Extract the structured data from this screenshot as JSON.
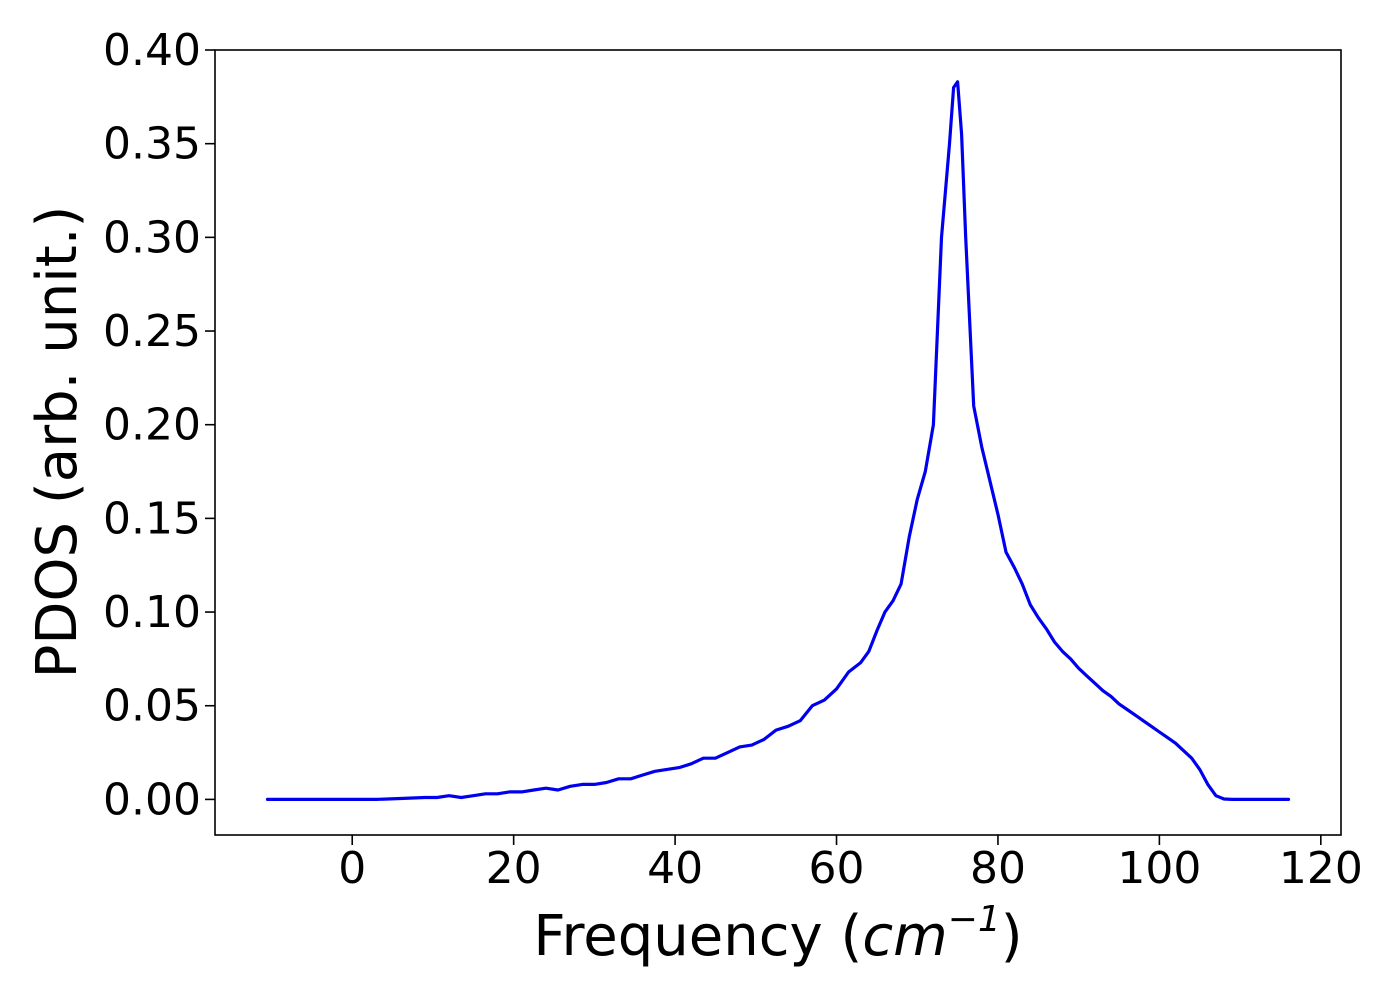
{
  "chart_data": {
    "type": "line",
    "title": "",
    "xlabel_prefix": "Frequency (",
    "xlabel_math": "cm",
    "xlabel_superscript": "−1",
    "xlabel_suffix": ")",
    "ylabel": "PDOS (arb. unit.)",
    "xlim": [
      -17,
      122.5
    ],
    "ylim": [
      -0.019,
      0.4
    ],
    "xticks": [
      0,
      20,
      40,
      60,
      80,
      100,
      120
    ],
    "yticks": [
      0.0,
      0.05,
      0.1,
      0.15,
      0.2,
      0.25,
      0.3,
      0.35,
      0.4
    ],
    "xtick_labels": [
      "0",
      "20",
      "40",
      "60",
      "80",
      "100",
      "120"
    ],
    "ytick_labels": [
      "0.00",
      "0.05",
      "0.10",
      "0.15",
      "0.20",
      "0.25",
      "0.30",
      "0.35",
      "0.40"
    ],
    "grid": false,
    "legend": "none",
    "series": [
      {
        "color": "#0000ee",
        "x": [
          -10.5,
          0,
          3,
          6,
          9,
          10.5,
          12,
          13.5,
          15,
          16.5,
          18,
          19.5,
          21,
          22.5,
          24,
          25.5,
          27,
          28.5,
          30,
          31.5,
          33,
          34.5,
          36,
          37.5,
          39,
          40.5,
          42,
          43.5,
          45,
          46.5,
          48,
          49.5,
          51,
          52.5,
          54,
          55.5,
          57,
          58.5,
          60,
          61.5,
          63,
          64,
          65,
          66,
          67,
          68,
          69,
          70,
          71,
          72,
          73,
          74,
          74.5,
          75,
          75.5,
          76,
          77,
          78,
          79,
          80,
          81,
          82,
          83,
          84,
          85,
          86,
          87,
          88,
          89,
          90,
          91,
          92,
          93,
          94,
          95,
          96,
          97,
          98,
          99,
          100,
          101,
          102,
          103,
          104,
          105,
          106,
          107,
          108,
          109,
          110,
          112,
          114,
          116
        ],
        "y": [
          0.0,
          0.0,
          0.0,
          0.0005,
          0.001,
          0.001,
          0.002,
          0.001,
          0.002,
          0.003,
          0.003,
          0.004,
          0.004,
          0.005,
          0.006,
          0.005,
          0.007,
          0.008,
          0.008,
          0.009,
          0.011,
          0.011,
          0.013,
          0.015,
          0.016,
          0.017,
          0.019,
          0.022,
          0.022,
          0.025,
          0.028,
          0.029,
          0.032,
          0.037,
          0.039,
          0.042,
          0.05,
          0.053,
          0.059,
          0.068,
          0.073,
          0.079,
          0.09,
          0.1,
          0.106,
          0.115,
          0.14,
          0.16,
          0.175,
          0.2,
          0.3,
          0.35,
          0.38,
          0.383,
          0.355,
          0.3,
          0.21,
          0.188,
          0.17,
          0.152,
          0.132,
          0.124,
          0.115,
          0.104,
          0.097,
          0.091,
          0.084,
          0.079,
          0.075,
          0.07,
          0.066,
          0.062,
          0.058,
          0.055,
          0.051,
          0.048,
          0.045,
          0.042,
          0.039,
          0.036,
          0.033,
          0.03,
          0.026,
          0.022,
          0.016,
          0.008,
          0.002,
          0.0002,
          0.0,
          0.0,
          0.0,
          0.0,
          0.0
        ]
      }
    ]
  }
}
